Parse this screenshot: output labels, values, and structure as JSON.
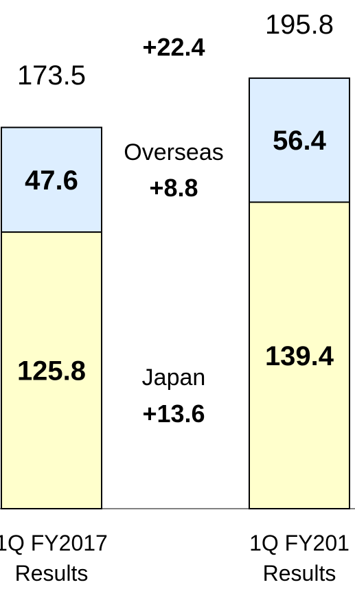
{
  "chart_data": {
    "type": "bar",
    "stacked": true,
    "categories": [
      "1Q FY2017\nResults",
      "1Q FY201\nResults"
    ],
    "series": [
      {
        "name": "Japan",
        "values": [
          125.8,
          139.4
        ],
        "color": "#FFFFCC"
      },
      {
        "name": "Overseas",
        "values": [
          47.6,
          56.4
        ],
        "color": "#DDEEFF"
      }
    ],
    "totals": [
      173.5,
      195.8
    ],
    "annotations": {
      "total_change": "+22.4",
      "overseas_label": "Overseas",
      "overseas_change": "+8.8",
      "japan_label": "Japan",
      "japan_change": "+13.6"
    },
    "grid": false,
    "legend": "none"
  }
}
